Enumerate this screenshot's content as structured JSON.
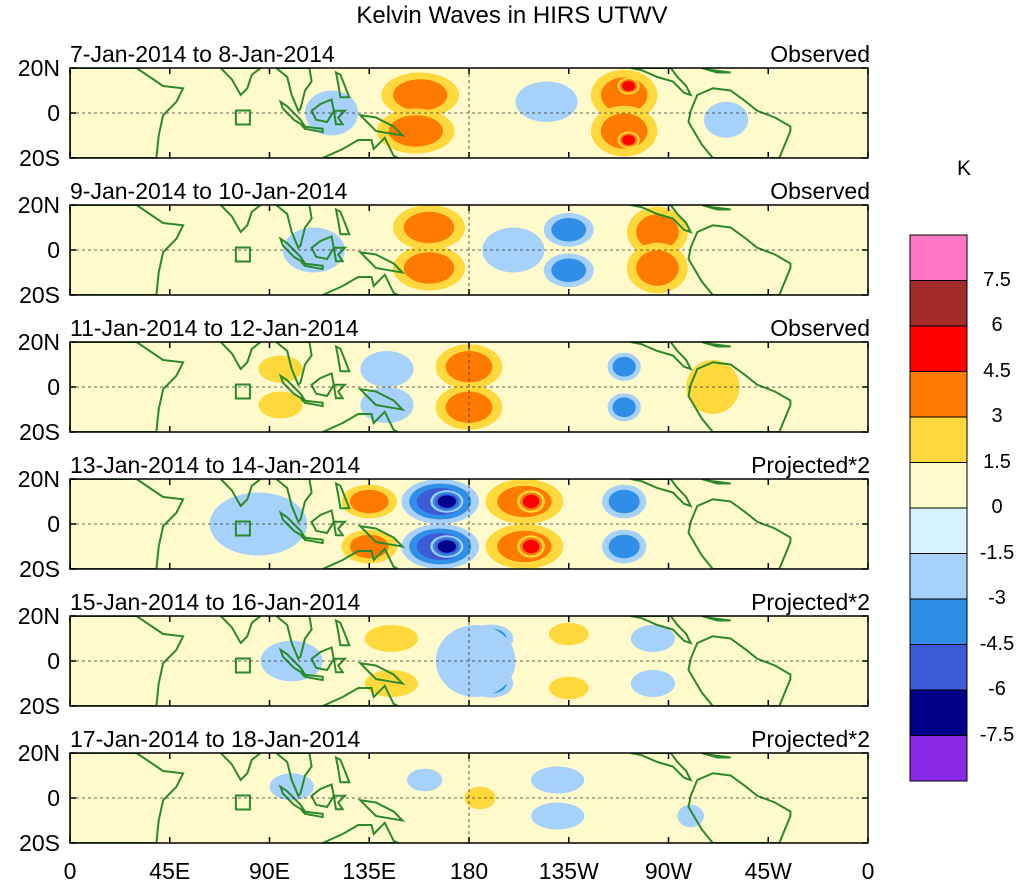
{
  "title": "Kelvin Waves in HIRS UTWV",
  "lat_labels": [
    "20N",
    "0",
    "20S"
  ],
  "lon_labels": [
    "0",
    "45E",
    "90E",
    "135E",
    "180",
    "135W",
    "90W",
    "45W",
    "0"
  ],
  "colorbar": {
    "unit": "K",
    "labels": [
      "7.5",
      "6",
      "4.5",
      "3",
      "1.5",
      "0",
      "-1.5",
      "-3",
      "-4.5",
      "-6",
      "-7.5"
    ],
    "colors": [
      "#ff77c4",
      "#a52a2a",
      "#ff0000",
      "#ff7b00",
      "#ffd93b",
      "#fffacc",
      "#d6f2ff",
      "#a6d1fa",
      "#2e8ee8",
      "#3c5bd8",
      "#00008b",
      "#8a28e8"
    ]
  },
  "land_color": "#2a8a2a",
  "panels": [
    {
      "date": "7-Jan-2014 to 8-Jan-2014",
      "kind": "Observed",
      "anomalies": [
        {
          "lon": 158,
          "lat": 8,
          "level": 3,
          "rx": 14,
          "ry": 8
        },
        {
          "lon": 156,
          "lat": -8,
          "level": 3,
          "rx": 14,
          "ry": 8
        },
        {
          "lon": 250,
          "lat": 8,
          "level": 3,
          "rx": 12,
          "ry": 9
        },
        {
          "lon": 250,
          "lat": -8,
          "level": 3,
          "rx": 12,
          "ry": 9
        },
        {
          "lon": 252,
          "lat": 12,
          "level": 4.5,
          "rx": 4,
          "ry": 3
        },
        {
          "lon": 252,
          "lat": -12,
          "level": 4.5,
          "rx": 4,
          "ry": 3
        },
        {
          "lon": 215,
          "lat": 5,
          "level": -1.5,
          "rx": 14,
          "ry": 9
        },
        {
          "lon": 118,
          "lat": 0,
          "level": -1.5,
          "rx": 12,
          "ry": 10
        },
        {
          "lon": 296,
          "lat": -3,
          "level": -1.5,
          "rx": 10,
          "ry": 8
        }
      ]
    },
    {
      "date": "9-Jan-2014 to 10-Jan-2014",
      "kind": "Observed",
      "anomalies": [
        {
          "lon": 162,
          "lat": 10,
          "level": 3,
          "rx": 13,
          "ry": 8
        },
        {
          "lon": 162,
          "lat": -8,
          "level": 3,
          "rx": 13,
          "ry": 8
        },
        {
          "lon": 265,
          "lat": 8,
          "level": 3,
          "rx": 11,
          "ry": 9
        },
        {
          "lon": 265,
          "lat": -8,
          "level": 3,
          "rx": 11,
          "ry": 9
        },
        {
          "lon": 225,
          "lat": 9,
          "level": -3,
          "rx": 9,
          "ry": 6
        },
        {
          "lon": 225,
          "lat": -9,
          "level": -3,
          "rx": 9,
          "ry": 6
        },
        {
          "lon": 200,
          "lat": 0,
          "level": -1.5,
          "rx": 14,
          "ry": 10
        },
        {
          "lon": 110,
          "lat": 0,
          "level": -1.5,
          "rx": 14,
          "ry": 10
        }
      ]
    },
    {
      "date": "11-Jan-2014 to 12-Jan-2014",
      "kind": "Observed",
      "anomalies": [
        {
          "lon": 180,
          "lat": 9,
          "level": 3,
          "rx": 12,
          "ry": 8
        },
        {
          "lon": 180,
          "lat": -9,
          "level": 3,
          "rx": 12,
          "ry": 8
        },
        {
          "lon": 143,
          "lat": 8,
          "level": -1.5,
          "rx": 12,
          "ry": 8
        },
        {
          "lon": 143,
          "lat": -8,
          "level": -1.5,
          "rx": 12,
          "ry": 8
        },
        {
          "lon": 250,
          "lat": 9,
          "level": -3,
          "rx": 6,
          "ry": 5
        },
        {
          "lon": 250,
          "lat": -9,
          "level": -3,
          "rx": 6,
          "ry": 5
        },
        {
          "lon": 95,
          "lat": 8,
          "level": 1.5,
          "rx": 10,
          "ry": 6
        },
        {
          "lon": 95,
          "lat": -8,
          "level": 1.5,
          "rx": 10,
          "ry": 6
        },
        {
          "lon": 290,
          "lat": 0,
          "level": 1.5,
          "rx": 12,
          "ry": 12
        }
      ]
    },
    {
      "date": "13-Jan-2014 to 14-Jan-2014",
      "kind": "Projected*2",
      "anomalies": [
        {
          "lon": 167,
          "lat": 10,
          "level": -4.5,
          "rx": 14,
          "ry": 8
        },
        {
          "lon": 167,
          "lat": -10,
          "level": -4.5,
          "rx": 14,
          "ry": 8
        },
        {
          "lon": 170,
          "lat": 10,
          "level": -6,
          "rx": 6,
          "ry": 4
        },
        {
          "lon": 170,
          "lat": -10,
          "level": -6,
          "rx": 6,
          "ry": 4
        },
        {
          "lon": 205,
          "lat": 10,
          "level": 3,
          "rx": 14,
          "ry": 8
        },
        {
          "lon": 205,
          "lat": -10,
          "level": 3,
          "rx": 14,
          "ry": 8
        },
        {
          "lon": 208,
          "lat": 10,
          "level": 4.5,
          "rx": 5,
          "ry": 4
        },
        {
          "lon": 208,
          "lat": -10,
          "level": 4.5,
          "rx": 5,
          "ry": 4
        },
        {
          "lon": 135,
          "lat": 10,
          "level": 3,
          "rx": 10,
          "ry": 6
        },
        {
          "lon": 135,
          "lat": -10,
          "level": 3,
          "rx": 10,
          "ry": 6
        },
        {
          "lon": 250,
          "lat": 10,
          "level": -3,
          "rx": 8,
          "ry": 6
        },
        {
          "lon": 250,
          "lat": -10,
          "level": -3,
          "rx": 8,
          "ry": 6
        },
        {
          "lon": 85,
          "lat": 0,
          "level": -1.5,
          "rx": 22,
          "ry": 14
        }
      ]
    },
    {
      "date": "15-Jan-2014 to 16-Jan-2014",
      "kind": "Projected*2",
      "anomalies": [
        {
          "lon": 190,
          "lat": 10,
          "level": -3,
          "rx": 8,
          "ry": 5
        },
        {
          "lon": 190,
          "lat": -10,
          "level": -3,
          "rx": 8,
          "ry": 5
        },
        {
          "lon": 183,
          "lat": 0,
          "level": -1.5,
          "rx": 18,
          "ry": 16
        },
        {
          "lon": 145,
          "lat": 10,
          "level": 1.5,
          "rx": 12,
          "ry": 6
        },
        {
          "lon": 145,
          "lat": -10,
          "level": 1.5,
          "rx": 12,
          "ry": 6
        },
        {
          "lon": 225,
          "lat": 12,
          "level": 1.5,
          "rx": 9,
          "ry": 5
        },
        {
          "lon": 225,
          "lat": -12,
          "level": 1.5,
          "rx": 9,
          "ry": 5
        },
        {
          "lon": 263,
          "lat": 10,
          "level": -1.5,
          "rx": 10,
          "ry": 6
        },
        {
          "lon": 263,
          "lat": -10,
          "level": -1.5,
          "rx": 10,
          "ry": 6
        },
        {
          "lon": 100,
          "lat": 0,
          "level": -1.5,
          "rx": 14,
          "ry": 9
        }
      ]
    },
    {
      "date": "17-Jan-2014 to 18-Jan-2014",
      "kind": "Projected*2",
      "anomalies": [
        {
          "lon": 220,
          "lat": 8,
          "level": -1.5,
          "rx": 12,
          "ry": 6
        },
        {
          "lon": 220,
          "lat": -8,
          "level": -1.5,
          "rx": 12,
          "ry": 6
        },
        {
          "lon": 185,
          "lat": 0,
          "level": 1.5,
          "rx": 7,
          "ry": 5
        },
        {
          "lon": 160,
          "lat": 8,
          "level": -1.5,
          "rx": 8,
          "ry": 5
        },
        {
          "lon": 100,
          "lat": 5,
          "level": -1.5,
          "rx": 10,
          "ry": 6
        },
        {
          "lon": 280,
          "lat": -8,
          "level": -1.5,
          "rx": 6,
          "ry": 5
        }
      ]
    }
  ]
}
